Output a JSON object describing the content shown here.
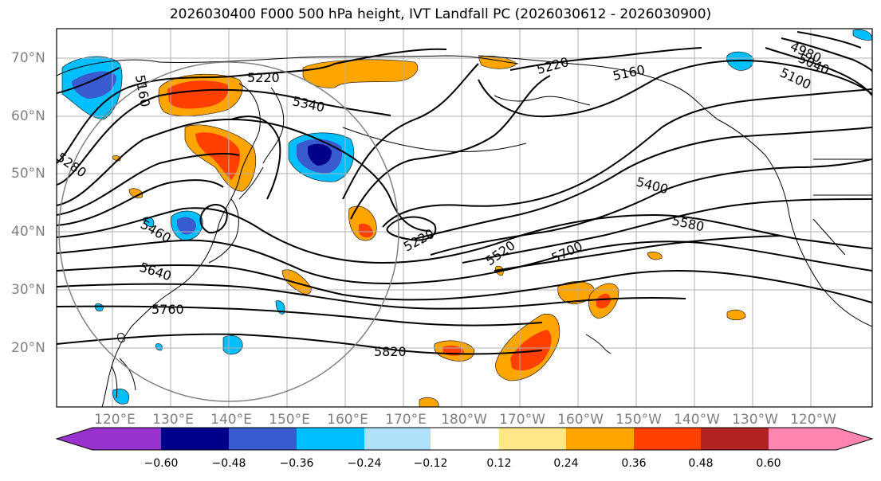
{
  "title": "2026030400 F000 500 hPa height, IVT Landfall PC (2026030612 - 2026030900)",
  "lon_labels": [
    "120°E",
    "130°E",
    "140°E",
    "150°E",
    "160°E",
    "170°E",
    "180°W",
    "170°W",
    "160°W",
    "150°W",
    "140°W",
    "130°W",
    "120°W"
  ],
  "lat_labels": [
    "70°N",
    "60°N",
    "50°N",
    "40°N",
    "30°N",
    "20°N"
  ],
  "contour_labels": [
    "5160",
    "5220",
    "5340",
    "5280",
    "5460",
    "5640",
    "5760",
    "5820",
    "5220",
    "5520",
    "5700",
    "5580",
    "5400",
    "5220",
    "5160",
    "4980",
    "5040",
    "5100"
  ],
  "colorbar": {
    "ticks": [
      "−0.60",
      "−0.48",
      "−0.36",
      "−0.24",
      "−0.12",
      "0.12",
      "0.24",
      "0.36",
      "0.48",
      "0.60"
    ],
    "colors": [
      "#9932cc",
      "#00008b",
      "#3a5bcf",
      "#00bfff",
      "#b0e0fa",
      "#ffffff",
      "#ffe78a",
      "#ffa500",
      "#ff4000",
      "#b22222",
      "#ff85b0"
    ]
  }
}
